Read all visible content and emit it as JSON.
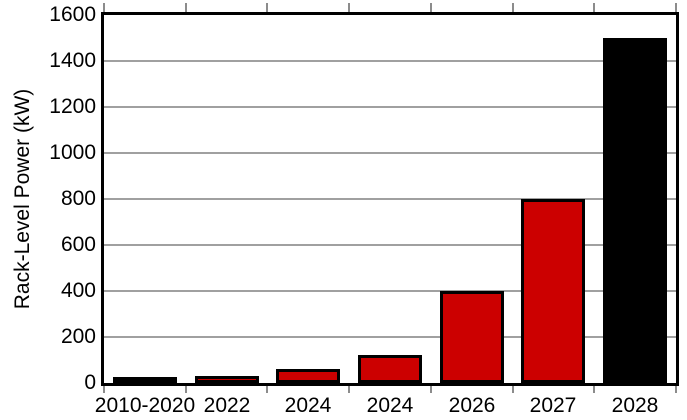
{
  "chart_data": {
    "type": "bar",
    "title": "",
    "xlabel": "",
    "ylabel": "Rack-Level Power (kW)",
    "categories": [
      "2010-2020",
      "2022",
      "2024",
      "2024",
      "2026",
      "2027",
      "2028"
    ],
    "values": [
      15,
      30,
      60,
      120,
      400,
      800,
      1500
    ],
    "bar_colors": [
      "#cc0000",
      "#cc0000",
      "#cc0000",
      "#cc0000",
      "#cc0000",
      "#cc0000",
      "#000000"
    ],
    "bar_edge_color": "#000000",
    "ylim": [
      0,
      1600
    ],
    "ytick_labels": [
      "0",
      "200",
      "400",
      "600",
      "800",
      "1000",
      "1200",
      "1400",
      "1600"
    ],
    "ytick_values": [
      0,
      200,
      400,
      600,
      800,
      1000,
      1200,
      1400,
      1600
    ],
    "grid": "horizontal",
    "gridline_color": "#a0a0a0",
    "tick_color": "#8c8c8c",
    "axis_color": "#000000",
    "background_color": "#ffffff",
    "legend": null
  }
}
